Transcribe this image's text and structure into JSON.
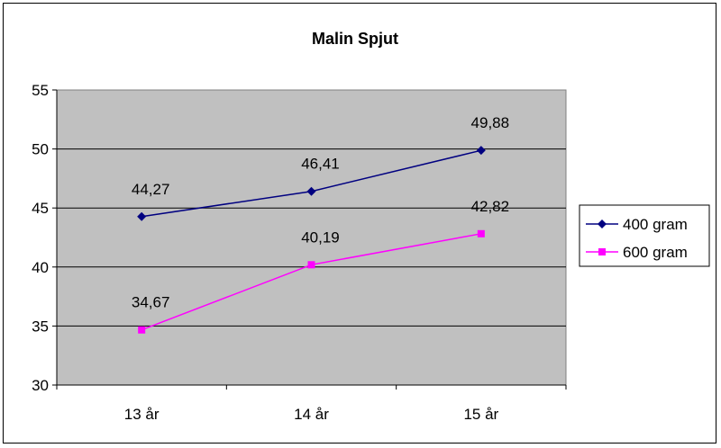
{
  "chart_data": {
    "type": "line",
    "title": "Malin Spjut",
    "categories": [
      "13 år",
      "14 år",
      "15 år"
    ],
    "ylim": [
      30,
      55
    ],
    "yticks": [
      30,
      35,
      40,
      45,
      50,
      55
    ],
    "grid": true,
    "legend_position": "right",
    "plot_background": "#c0c0c0",
    "series": [
      {
        "name": "400 gram",
        "values": [
          44.27,
          46.41,
          49.88
        ],
        "labels": [
          "44,27",
          "46,41",
          "49,88"
        ],
        "color": "#000080",
        "marker": "diamond"
      },
      {
        "name": "600 gram",
        "values": [
          34.67,
          40.19,
          42.82
        ],
        "labels": [
          "34,67",
          "40,19",
          "42,82"
        ],
        "color": "#ff00ff",
        "marker": "square"
      }
    ]
  }
}
